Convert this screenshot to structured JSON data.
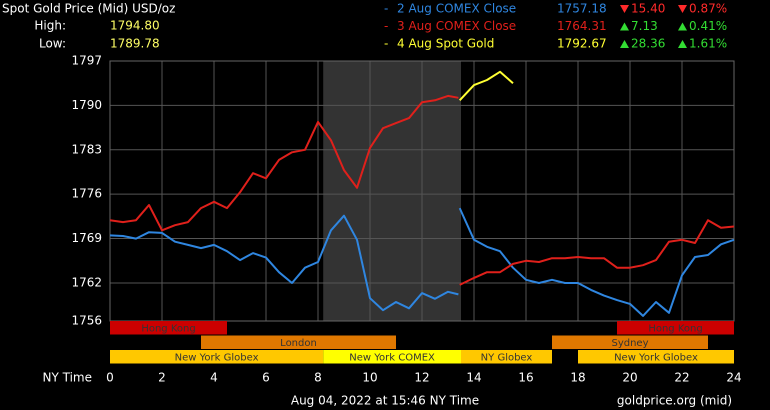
{
  "chart_data": {
    "type": "line",
    "title": "Spot Gold Price (Mid) USD/oz",
    "high_label": "High:",
    "high": "1794.80",
    "low_label": "Low:",
    "low": "1789.78",
    "x_label": "NY Time",
    "timestamp": "Aug 04, 2022 at 15:46 NY Time",
    "source": "goldprice.org (mid)",
    "xlim": [
      0,
      24
    ],
    "xticks": [
      0,
      2,
      4,
      6,
      8,
      10,
      12,
      14,
      16,
      18,
      20,
      22,
      24
    ],
    "ylim": [
      1756,
      1797
    ],
    "yticks": [
      1756,
      1762,
      1769,
      1776,
      1783,
      1790,
      1797
    ],
    "grid": true,
    "x": [
      0,
      0.5,
      1,
      1.5,
      2,
      2.5,
      3,
      3.5,
      4,
      4.5,
      5,
      5.5,
      6,
      6.5,
      7,
      7.5,
      8,
      8.5,
      9,
      9.5,
      10,
      10.5,
      11,
      11.5,
      12,
      12.5,
      13,
      13.4,
      13.42,
      13.45,
      14,
      14.5,
      15,
      15.5,
      16,
      16.5,
      17,
      17.5,
      18,
      18.5,
      19,
      19.5,
      20,
      20.5,
      21,
      21.5,
      22,
      22.5,
      23,
      23.5,
      24
    ],
    "series": [
      {
        "name": "2 Aug COMEX Close",
        "color": "#2f86e0",
        "close": "1757.18",
        "change": "15.40",
        "change_pct": "0.87%",
        "direction": "down",
        "values": [
          1769.5,
          1769.4,
          1769,
          1770,
          1769.9,
          1768.5,
          1768,
          1767.5,
          1768,
          1767,
          1765.6,
          1766.7,
          1766,
          1763.7,
          1762,
          1764.4,
          1765.3,
          1770.3,
          1772.6,
          1768.8,
          1759.6,
          1757.7,
          1759,
          1758,
          1760.4,
          1759.5,
          1760.6,
          1760.2,
          null,
          1773.8,
          1768.8,
          1767.7,
          1767,
          1764.4,
          1762.5,
          1762,
          1762.5,
          1762,
          1762,
          1760.9,
          1760,
          1759.3,
          1758.7,
          1756.8,
          1759,
          1757.3,
          1763.2,
          1766.1,
          1766.4,
          1768.1,
          1768.8
        ]
      },
      {
        "name": "3 Aug COMEX Close",
        "color": "#e0201b",
        "close": "1764.31",
        "change": "7.13",
        "change_pct": "0.41%",
        "direction": "up",
        "values": [
          1771.9,
          1771.6,
          1771.9,
          1774.3,
          1770.3,
          1771.1,
          1771.6,
          1773.8,
          1774.8,
          1773.8,
          1776.3,
          1779.3,
          1778.5,
          1781.4,
          1782.6,
          1783,
          1787.4,
          1784.5,
          1779.8,
          1777,
          1783.3,
          1786.4,
          1787.2,
          1788,
          1790.5,
          1790.8,
          1791.5,
          1791.2,
          null,
          1761.7,
          1762.8,
          1763.7,
          1763.7,
          1765,
          1765.5,
          1765.3,
          1765.9,
          1765.9,
          1766.1,
          1765.9,
          1765.9,
          1764.4,
          1764.4,
          1764.8,
          1765.6,
          1768.5,
          1768.8,
          1768.3,
          1771.9,
          1770.7,
          1770.9
        ]
      },
      {
        "name": "4 Aug Spot Gold",
        "color": "#ffff33",
        "close": "1792.67",
        "change": "28.36",
        "change_pct": "1.61%",
        "direction": "up",
        "values": [
          null,
          null,
          null,
          null,
          null,
          null,
          null,
          null,
          null,
          null,
          null,
          null,
          null,
          null,
          null,
          null,
          null,
          null,
          null,
          null,
          null,
          null,
          null,
          null,
          null,
          null,
          null,
          null,
          null,
          1790.8,
          1793.2,
          1794,
          1795.3,
          1793.5,
          null,
          null,
          null,
          null,
          null,
          null,
          null,
          null,
          null,
          null,
          null,
          null,
          null,
          null,
          null,
          null,
          null
        ]
      }
    ],
    "sessions": [
      {
        "name": "Hong Kong",
        "start": 0,
        "end": 4.5,
        "row": 0,
        "color": "#cc0000"
      },
      {
        "name": "Hong Kong",
        "start": 19.5,
        "end": 24,
        "row": 0,
        "color": "#cc0000"
      },
      {
        "name": "London",
        "start": 3.5,
        "end": 11,
        "row": 1,
        "color": "#e07800"
      },
      {
        "name": "Sydney",
        "start": 17,
        "end": 23,
        "row": 1,
        "color": "#e07800"
      },
      {
        "name": "New York Globex",
        "start": 0,
        "end": 8.2,
        "row": 2,
        "color": "#ffc800"
      },
      {
        "name": "New York COMEX",
        "start": 8.2,
        "end": 13.5,
        "row": 2,
        "color": "#ffff00"
      },
      {
        "name": "NY Globex",
        "start": 13.5,
        "end": 17,
        "row": 2,
        "color": "#ffc800"
      },
      {
        "name": "New York Globex",
        "start": 18,
        "end": 24,
        "row": 2,
        "color": "#ffc800"
      }
    ]
  }
}
